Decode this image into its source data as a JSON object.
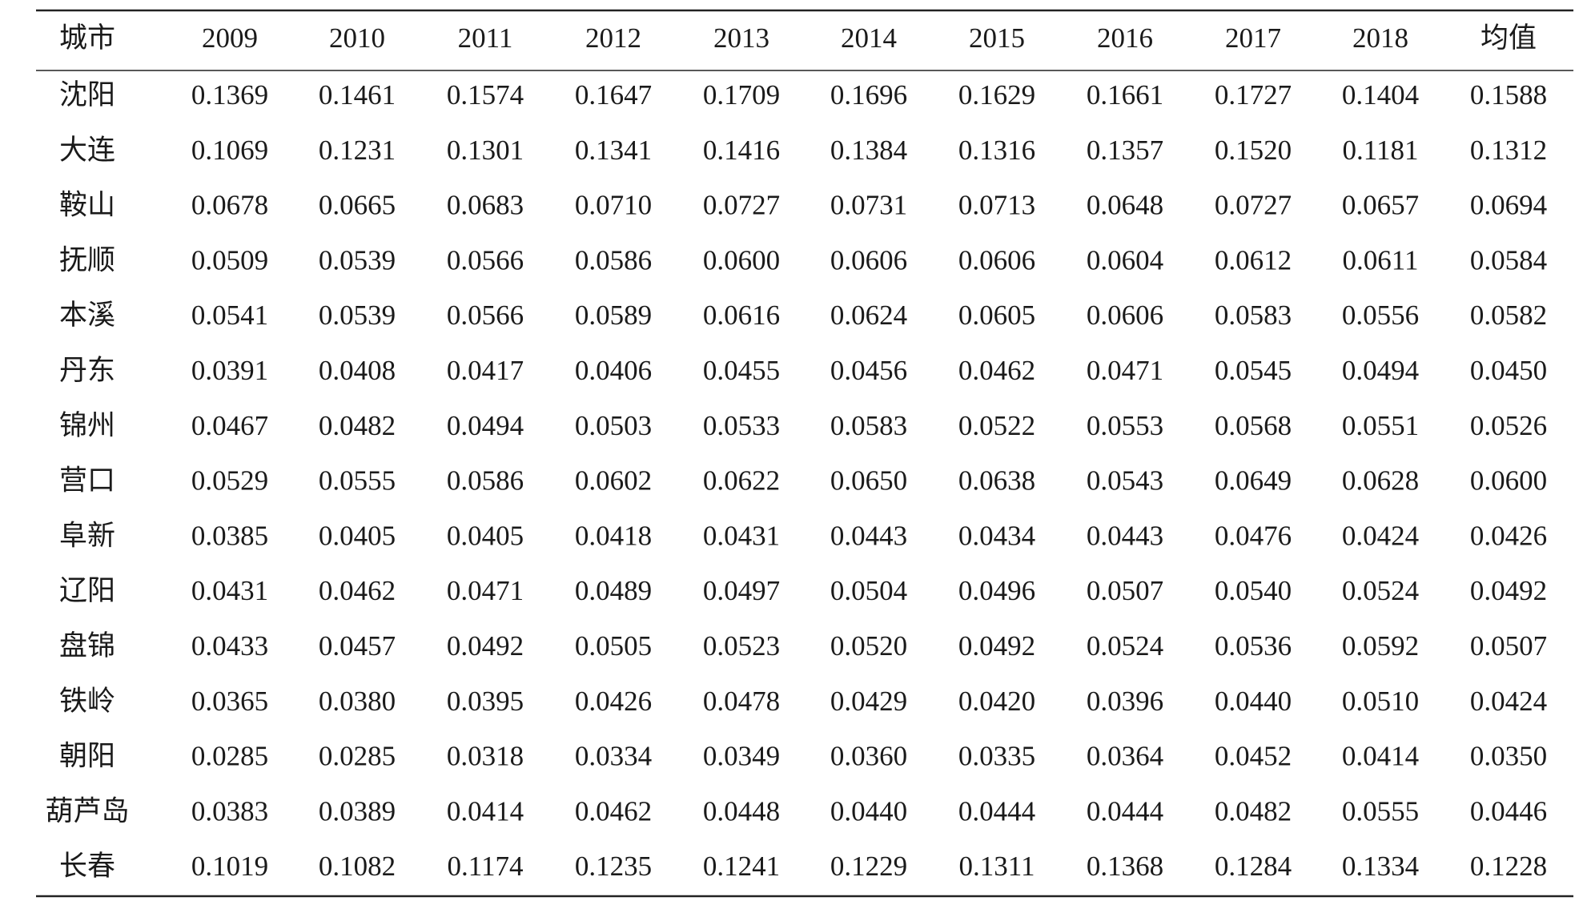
{
  "table": {
    "header": [
      "城市",
      "2009",
      "2010",
      "2011",
      "2012",
      "2013",
      "2014",
      "2015",
      "2016",
      "2017",
      "2018",
      "均值"
    ],
    "rows": [
      [
        "沈阳",
        "0.1369",
        "0.1461",
        "0.1574",
        "0.1647",
        "0.1709",
        "0.1696",
        "0.1629",
        "0.1661",
        "0.1727",
        "0.1404",
        "0.1588"
      ],
      [
        "大连",
        "0.1069",
        "0.1231",
        "0.1301",
        "0.1341",
        "0.1416",
        "0.1384",
        "0.1316",
        "0.1357",
        "0.1520",
        "0.1181",
        "0.1312"
      ],
      [
        "鞍山",
        "0.0678",
        "0.0665",
        "0.0683",
        "0.0710",
        "0.0727",
        "0.0731",
        "0.0713",
        "0.0648",
        "0.0727",
        "0.0657",
        "0.0694"
      ],
      [
        "抚顺",
        "0.0509",
        "0.0539",
        "0.0566",
        "0.0586",
        "0.0600",
        "0.0606",
        "0.0606",
        "0.0604",
        "0.0612",
        "0.0611",
        "0.0584"
      ],
      [
        "本溪",
        "0.0541",
        "0.0539",
        "0.0566",
        "0.0589",
        "0.0616",
        "0.0624",
        "0.0605",
        "0.0606",
        "0.0583",
        "0.0556",
        "0.0582"
      ],
      [
        "丹东",
        "0.0391",
        "0.0408",
        "0.0417",
        "0.0406",
        "0.0455",
        "0.0456",
        "0.0462",
        "0.0471",
        "0.0545",
        "0.0494",
        "0.0450"
      ],
      [
        "锦州",
        "0.0467",
        "0.0482",
        "0.0494",
        "0.0503",
        "0.0533",
        "0.0583",
        "0.0522",
        "0.0553",
        "0.0568",
        "0.0551",
        "0.0526"
      ],
      [
        "营口",
        "0.0529",
        "0.0555",
        "0.0586",
        "0.0602",
        "0.0622",
        "0.0650",
        "0.0638",
        "0.0543",
        "0.0649",
        "0.0628",
        "0.0600"
      ],
      [
        "阜新",
        "0.0385",
        "0.0405",
        "0.0405",
        "0.0418",
        "0.0431",
        "0.0443",
        "0.0434",
        "0.0443",
        "0.0476",
        "0.0424",
        "0.0426"
      ],
      [
        "辽阳",
        "0.0431",
        "0.0462",
        "0.0471",
        "0.0489",
        "0.0497",
        "0.0504",
        "0.0496",
        "0.0507",
        "0.0540",
        "0.0524",
        "0.0492"
      ],
      [
        "盘锦",
        "0.0433",
        "0.0457",
        "0.0492",
        "0.0505",
        "0.0523",
        "0.0520",
        "0.0492",
        "0.0524",
        "0.0536",
        "0.0592",
        "0.0507"
      ],
      [
        "铁岭",
        "0.0365",
        "0.0380",
        "0.0395",
        "0.0426",
        "0.0478",
        "0.0429",
        "0.0420",
        "0.0396",
        "0.0440",
        "0.0510",
        "0.0424"
      ],
      [
        "朝阳",
        "0.0285",
        "0.0285",
        "0.0318",
        "0.0334",
        "0.0349",
        "0.0360",
        "0.0335",
        "0.0364",
        "0.0452",
        "0.0414",
        "0.0350"
      ],
      [
        "葫芦岛",
        "0.0383",
        "0.0389",
        "0.0414",
        "0.0462",
        "0.0448",
        "0.0440",
        "0.0444",
        "0.0444",
        "0.0482",
        "0.0555",
        "0.0446"
      ],
      [
        "长春",
        "0.1019",
        "0.1082",
        "0.1174",
        "0.1235",
        "0.1241",
        "0.1229",
        "0.1311",
        "0.1368",
        "0.1284",
        "0.1334",
        "0.1228"
      ]
    ]
  }
}
